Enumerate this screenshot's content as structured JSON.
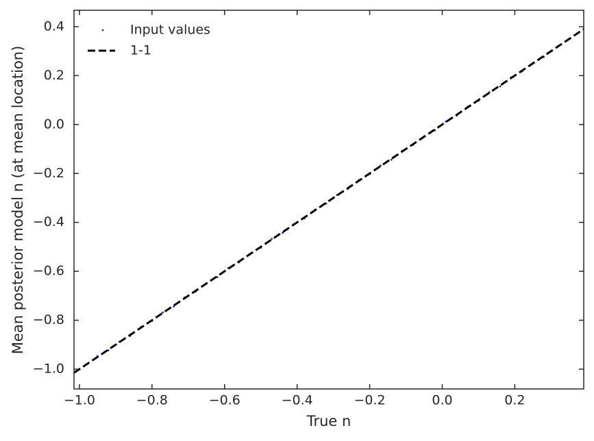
{
  "chart_data": {
    "type": "scatter",
    "xlabel": "True n",
    "ylabel": "Mean posterior model n (at mean location)",
    "xlim": [
      -1.015,
      0.39
    ],
    "ylim": [
      -1.081,
      0.467
    ],
    "xticks": [
      {
        "value": -1.0,
        "label": "−1.0"
      },
      {
        "value": -0.8,
        "label": "−0.8"
      },
      {
        "value": -0.6,
        "label": "−0.6"
      },
      {
        "value": -0.4,
        "label": "−0.4"
      },
      {
        "value": -0.2,
        "label": "−0.2"
      },
      {
        "value": 0.0,
        "label": "0.0"
      },
      0.2
    ],
    "yticks": [
      {
        "value": -1.0,
        "label": "−1.0"
      },
      {
        "value": -0.8,
        "label": "−0.8"
      },
      {
        "value": -0.6,
        "label": "−0.6"
      },
      {
        "value": -0.4,
        "label": "−0.4"
      },
      {
        "value": -0.2,
        "label": "−0.2"
      },
      {
        "value": 0.0,
        "label": "0.0"
      },
      0.2,
      0.4
    ],
    "legend": "upper left",
    "series": [
      {
        "name": "Input values",
        "type": "scatter",
        "color": "#0000ff",
        "x": [
          -0.95,
          -0.92,
          -0.89,
          -0.86,
          -0.83,
          -0.8,
          -0.77,
          -0.74,
          -0.71,
          -0.68,
          -0.65,
          -0.62,
          -0.59,
          -0.56,
          -0.53,
          -0.5,
          -0.47,
          -0.44,
          -0.41,
          -0.38,
          -0.35,
          -0.32,
          -0.29,
          -0.26,
          -0.23,
          -0.2,
          -0.17,
          -0.14,
          -0.11,
          -0.08,
          -0.05,
          -0.02,
          0.01,
          0.04,
          0.07,
          0.1,
          0.13,
          0.16,
          0.19,
          0.22,
          0.25,
          0.28
        ],
        "y": [
          -0.946,
          -0.923,
          -0.888,
          -0.864,
          -0.827,
          -0.803,
          -0.768,
          -0.744,
          -0.707,
          -0.683,
          -0.648,
          -0.624,
          -0.587,
          -0.563,
          -0.528,
          -0.504,
          -0.467,
          -0.443,
          -0.408,
          -0.384,
          -0.347,
          -0.323,
          -0.288,
          -0.264,
          -0.227,
          -0.203,
          -0.168,
          -0.144,
          -0.107,
          -0.083,
          -0.048,
          -0.024,
          0.012,
          0.036,
          0.073,
          0.097,
          0.132,
          0.156,
          0.193,
          0.217,
          0.252,
          0.276
        ]
      },
      {
        "name": "1-1",
        "type": "line",
        "color": "#000000",
        "dashed": true,
        "x": [
          -1.015,
          0.39
        ],
        "y": [
          -1.015,
          0.39
        ]
      }
    ]
  }
}
